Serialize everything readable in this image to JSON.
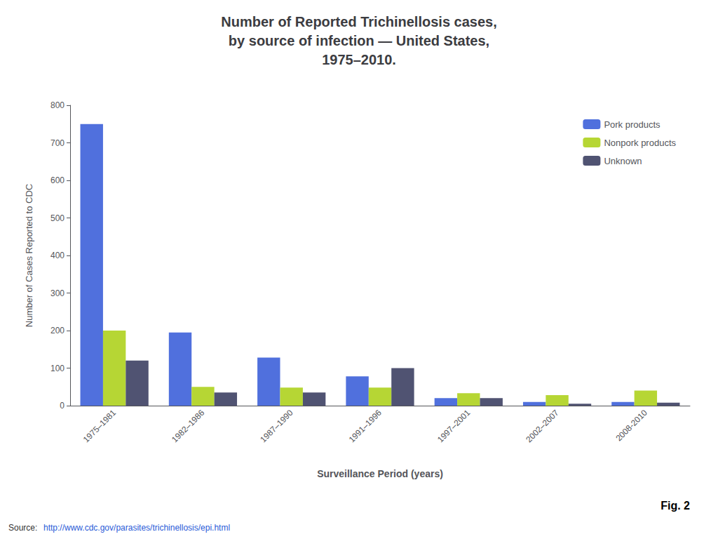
{
  "chart_data": {
    "type": "bar",
    "title": "Number of Reported Trichinellosis cases,\nby source of infection — United States,\n1975–2010.",
    "categories": [
      "1975–1981",
      "1982–1986",
      "1987–1990",
      "1991–1996",
      "1997–2001",
      "2002–2007",
      "2008-2010"
    ],
    "series": [
      {
        "name": "Pork products",
        "values": [
          750,
          195,
          128,
          78,
          20,
          10,
          10
        ]
      },
      {
        "name": "Nonpork products",
        "values": [
          200,
          50,
          48,
          48,
          33,
          28,
          40
        ]
      },
      {
        "name": "Unknown",
        "values": [
          120,
          35,
          35,
          100,
          20,
          5,
          8
        ]
      }
    ],
    "ylabel": "Number of Cases Reported to CDC",
    "xlabel": "Surveillance Period (years)",
    "ylim": [
      0,
      800
    ],
    "yticks": [
      0,
      100,
      200,
      300,
      400,
      500,
      600,
      700,
      800
    ],
    "grid": false,
    "legend": "upper right",
    "annotations": [
      "Fig. 2",
      "Source:",
      "http://www.cdc.gov/parasites/trichinellosis/epi.html"
    ]
  }
}
